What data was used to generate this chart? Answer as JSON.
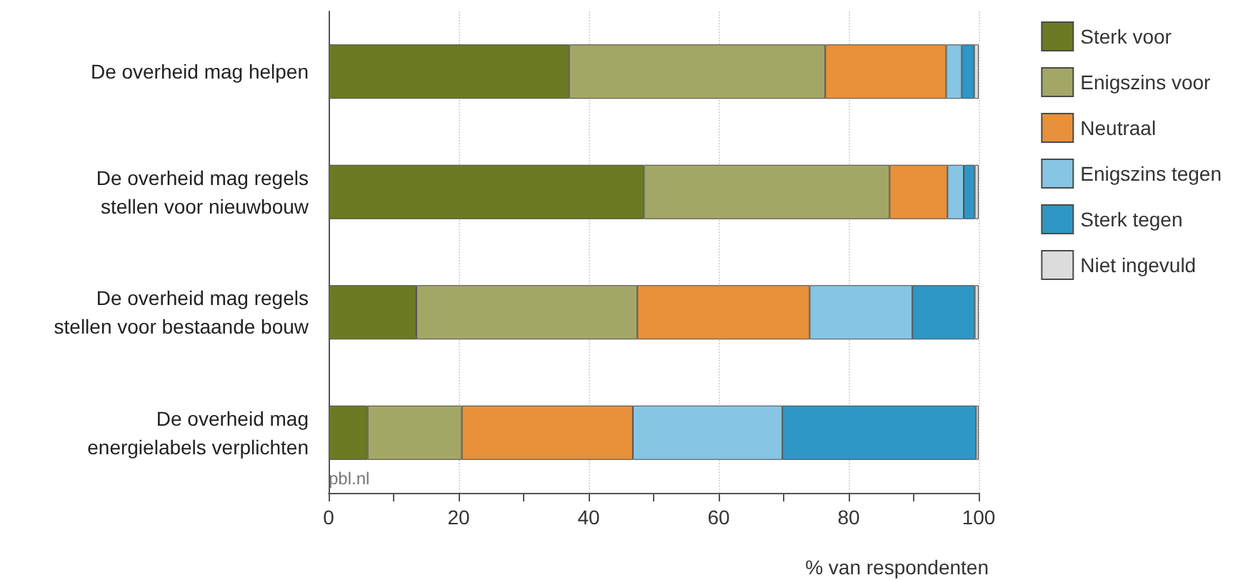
{
  "chart_data": {
    "type": "bar",
    "orientation": "horizontal",
    "stacked": true,
    "categories": [
      "De overheid mag helpen",
      "De overheid mag regels\nstellen voor nieuwbouw",
      "De overheid mag regels\nstellen voor bestaande bouw",
      "De overheid mag\nenergielabels verplichten"
    ],
    "series": [
      {
        "name": "Sterk voor",
        "color": "#6b7a23",
        "values": [
          37,
          48.5,
          13.5,
          6
        ]
      },
      {
        "name": "Enigszins voor",
        "color": "#a3a766",
        "values": [
          39.4,
          37.8,
          34,
          14.5
        ]
      },
      {
        "name": "Neutraal",
        "color": "#e8903a",
        "values": [
          18.6,
          8.9,
          26.5,
          26.3
        ]
      },
      {
        "name": "Enigszins tegen",
        "color": "#86c5e3",
        "values": [
          2.4,
          2.5,
          15.8,
          23
        ]
      },
      {
        "name": "Sterk tegen",
        "color": "#2e97c6",
        "values": [
          1.9,
          1.7,
          9.6,
          29.8
        ]
      },
      {
        "name": "Niet ingevuld",
        "color": "#dcdcdc",
        "values": [
          0.7,
          0.6,
          0.6,
          0.4
        ]
      }
    ],
    "xlabel": "% van respondenten",
    "xlim": [
      0,
      100
    ],
    "xticks": [
      0,
      {
        "value": 10,
        "label": null
      },
      20,
      {
        "value": 30,
        "label": null
      },
      40,
      {
        "value": 50,
        "label": null
      },
      60,
      {
        "value": 70,
        "label": null
      },
      80,
      {
        "value": 90,
        "label": null
      },
      100
    ],
    "grid": "x",
    "legend": "top right",
    "annotations": [
      "pbl.nl"
    ]
  }
}
